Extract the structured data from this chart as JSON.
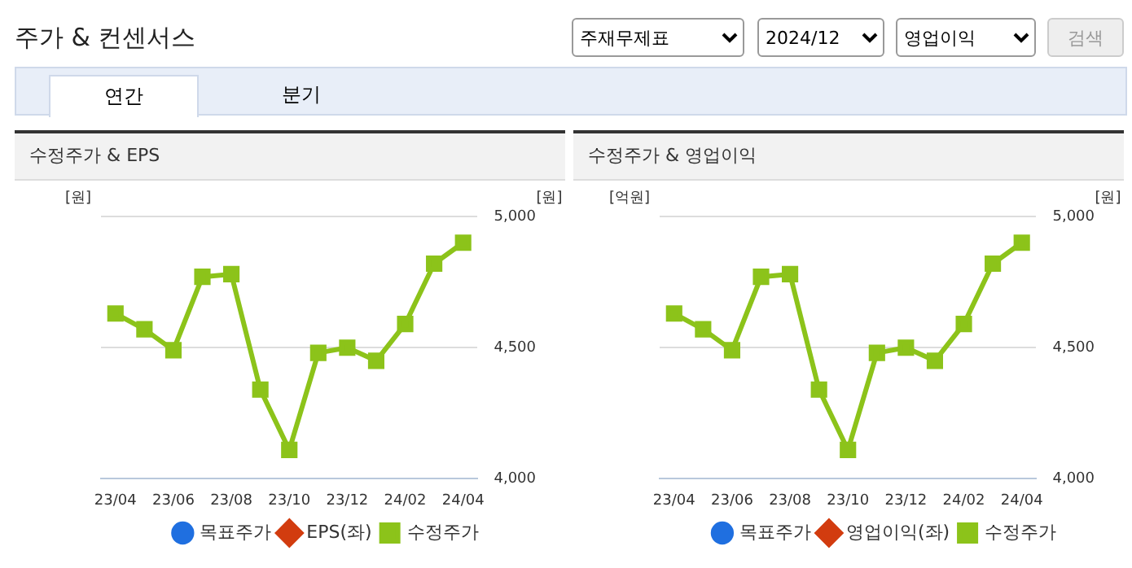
{
  "chart_data": [
    {
      "type": "other",
      "title": "주가 & 컨센서스",
      "annotations": [
        "주재무제표",
        "2024/12",
        "영업이익",
        "검색",
        "연간",
        "분기"
      ]
    },
    {
      "type": "line",
      "title": "수정주가 & EPS",
      "ylabel": "[원]",
      "y2label": "[원]",
      "categories": [
        "23/04",
        null,
        "23/06",
        null,
        "23/08",
        null,
        "23/10",
        null,
        "23/12",
        null,
        "24/02",
        null,
        "24/04"
      ],
      "series": [
        {
          "name": "목표주가",
          "type": "bar",
          "color": "#1f6fe0",
          "values": [
            null,
            null,
            null,
            null,
            null,
            null,
            null,
            null,
            null,
            null,
            null,
            null,
            null
          ]
        },
        {
          "name": "EPS(좌)",
          "color": "#d23c0f",
          "marker": "diamond",
          "values": [
            null,
            null,
            null,
            null,
            null,
            null,
            null,
            null,
            null,
            null,
            null,
            null,
            null
          ]
        },
        {
          "name": "수정주가",
          "color": "#8cc31a",
          "axis": "y2",
          "marker": "square",
          "values": [
            4630,
            4570,
            4490,
            4770,
            4780,
            4340,
            4110,
            4480,
            4500,
            4450,
            4590,
            4820,
            4900
          ]
        }
      ],
      "y2lim": [
        4000,
        5000
      ],
      "y2ticks": [
        {
          "value": 4000,
          "label": "4,000"
        },
        {
          "value": 4500,
          "label": "4,500"
        },
        {
          "value": 5000,
          "label": "5,000"
        }
      ],
      "grid": "y",
      "legend": "bottom"
    },
    {
      "type": "line",
      "title": "수정주가 & 영업이익",
      "ylabel": "[억원]",
      "y2label": "[원]",
      "categories": [
        "23/04",
        null,
        "23/06",
        null,
        "23/08",
        null,
        "23/10",
        null,
        "23/12",
        null,
        "24/02",
        null,
        "24/04"
      ],
      "series": [
        {
          "name": "목표주가",
          "type": "bar",
          "color": "#1f6fe0",
          "values": [
            null,
            null,
            null,
            null,
            null,
            null,
            null,
            null,
            null,
            null,
            null,
            null,
            null
          ]
        },
        {
          "name": "영업이익(좌)",
          "color": "#d23c0f",
          "marker": "diamond",
          "values": [
            null,
            null,
            null,
            null,
            null,
            null,
            null,
            null,
            null,
            null,
            null,
            null,
            null
          ]
        },
        {
          "name": "수정주가",
          "color": "#8cc31a",
          "axis": "y2",
          "marker": "square",
          "values": [
            4630,
            4570,
            4490,
            4770,
            4780,
            4340,
            4110,
            4480,
            4500,
            4450,
            4590,
            4820,
            4900
          ]
        }
      ],
      "y2lim": [
        4000,
        5000
      ],
      "y2ticks": [
        {
          "value": 4000,
          "label": "4,000"
        },
        {
          "value": 4500,
          "label": "4,500"
        },
        {
          "value": 5000,
          "label": "5,000"
        }
      ],
      "grid": "y",
      "legend": "bottom"
    }
  ]
}
